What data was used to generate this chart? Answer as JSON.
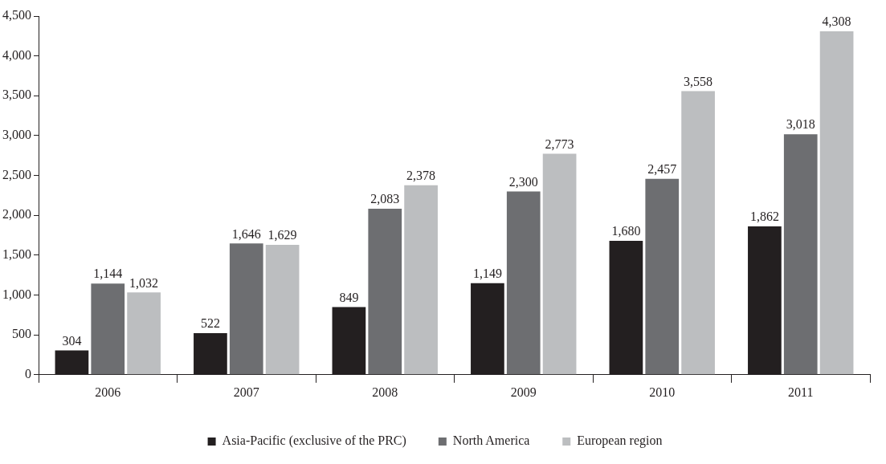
{
  "chart_data": {
    "type": "bar",
    "categories": [
      "2006",
      "2007",
      "2008",
      "2009",
      "2010",
      "2011"
    ],
    "series": [
      {
        "name": "Asia-Pacific (exclusive of the PRC)",
        "color": "#231f20",
        "values": [
          304,
          522,
          849,
          1149,
          1680,
          1862
        ],
        "value_labels": [
          "304",
          "522",
          "849",
          "1,149",
          "1,680",
          "1,862"
        ]
      },
      {
        "name": "North America",
        "color": "#6d6e71",
        "values": [
          1144,
          1646,
          2083,
          2300,
          2457,
          3018
        ],
        "value_labels": [
          "1,144",
          "1,646",
          "2,083",
          "2,300",
          "2,457",
          "3,018"
        ]
      },
      {
        "name": "European region",
        "color": "#bcbec0",
        "values": [
          1032,
          1629,
          2378,
          2773,
          3558,
          4308
        ],
        "value_labels": [
          "1,032",
          "1,629",
          "2,378",
          "2,773",
          "3,558",
          "4,308"
        ]
      }
    ],
    "ylim": [
      0,
      4500
    ],
    "yticks": [
      0,
      500,
      {
        "value": 1000,
        "label": "1,000"
      },
      {
        "value": 1500,
        "label": "1,500"
      },
      {
        "value": 2000,
        "label": "2,000"
      },
      {
        "value": 2500,
        "label": "2,500"
      },
      {
        "value": 3000,
        "label": "3,000"
      },
      {
        "value": 3500,
        "label": "3,500"
      },
      {
        "value": 4000,
        "label": "4,000"
      },
      {
        "value": 4500,
        "label": "4,500"
      }
    ],
    "legend": "bottom"
  }
}
